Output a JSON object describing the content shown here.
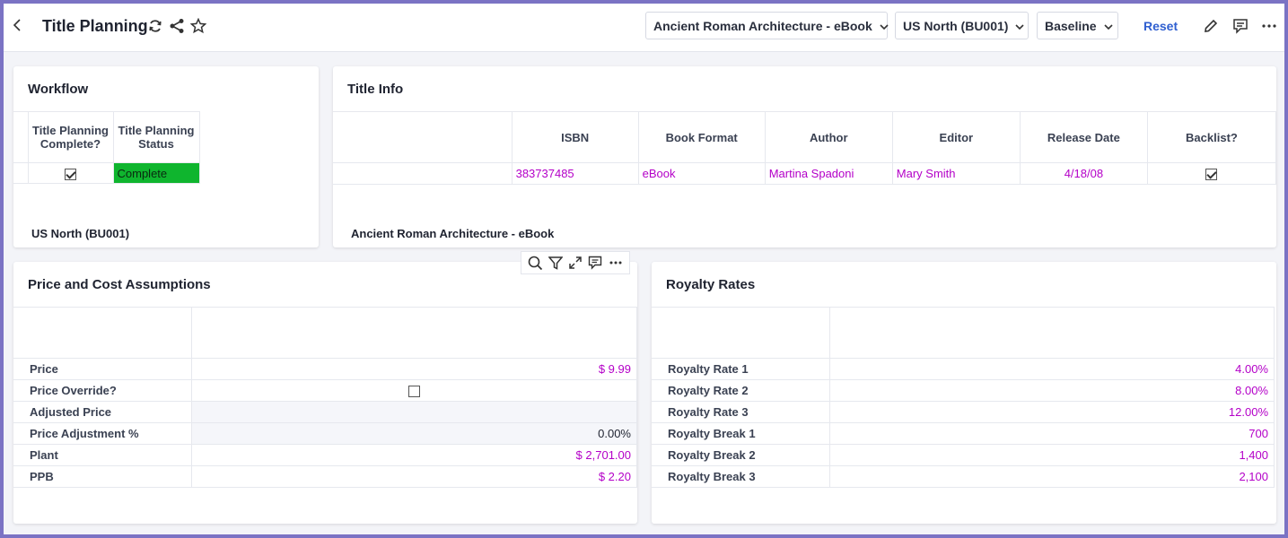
{
  "header": {
    "title": "Title Planning",
    "dropdowns": [
      "Ancient Roman Architecture - eBook",
      "US North (BU001)",
      "Baseline"
    ],
    "reset_label": "Reset"
  },
  "workflow": {
    "title": "Workflow",
    "columns": [
      "Title Planning Complete?",
      "Title Planning Status"
    ],
    "row": {
      "complete": true,
      "status": "Complete"
    },
    "footer": "US North (BU001)",
    "status_color": "#0fb52e"
  },
  "title_info": {
    "title": "Title Info",
    "columns": [
      "ISBN",
      "Book Format",
      "Author",
      "Editor",
      "Release Date",
      "Backlist?"
    ],
    "row": {
      "isbn": "383737485",
      "format": "eBook",
      "author": "Martina Spadoni",
      "editor": "Mary Smith",
      "release_date": "4/18/08",
      "backlist": true
    },
    "footer": "Ancient Roman Architecture - eBook"
  },
  "price_cost": {
    "title": "Price and Cost Assumptions",
    "rows": [
      {
        "label": "Price",
        "value": "$ 9.99"
      },
      {
        "label": "Price Override?",
        "value": ""
      },
      {
        "label": "Adjusted Price",
        "value": ""
      },
      {
        "label": "Price Adjustment %",
        "value": "0.00%"
      },
      {
        "label": "Plant",
        "value": "$ 2,701.00"
      },
      {
        "label": "PPB",
        "value": "$ 2.20"
      }
    ]
  },
  "royalty": {
    "title": "Royalty Rates",
    "rows": [
      {
        "label": "Royalty Rate 1",
        "value": "4.00%"
      },
      {
        "label": "Royalty Rate 2",
        "value": "8.00%"
      },
      {
        "label": "Royalty Rate 3",
        "value": "12.00%"
      },
      {
        "label": "Royalty Break 1",
        "value": "700"
      },
      {
        "label": "Royalty Break 2",
        "value": "1,400"
      },
      {
        "label": "Royalty Break 3",
        "value": "2,100"
      }
    ]
  },
  "colors": {
    "accent": "#2f5fd0",
    "value_pink": "#b400c8",
    "frame": "#7b73c4"
  }
}
